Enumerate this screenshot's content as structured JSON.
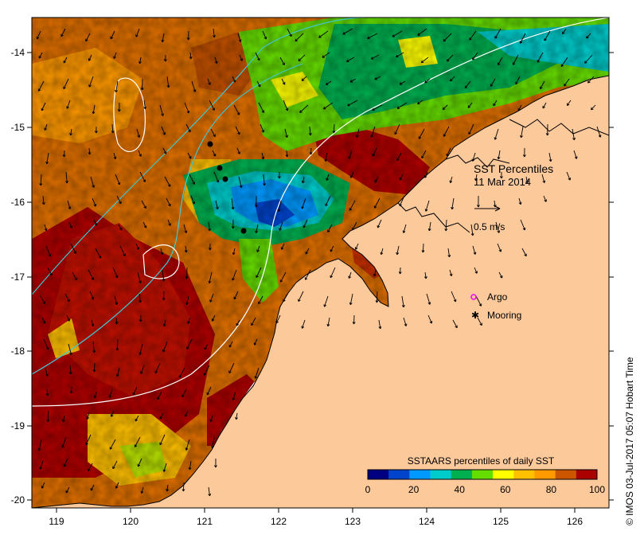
{
  "map": {
    "title": "SST Percentiles",
    "date": "11 Mar 2014",
    "x_ticks": [
      "119",
      "120",
      "121",
      "122",
      "123",
      "124",
      "125",
      "126"
    ],
    "y_ticks": [
      "-14",
      "-15",
      "-16",
      "-17",
      "-18",
      "-19",
      "-20"
    ],
    "vector_scale_label": "0.5 m/s",
    "legend": {
      "argo_label": "Argo",
      "mooring_label": "Mooring",
      "argo_color": "#ff00ff",
      "mooring_color": "#000000"
    },
    "colorbar": {
      "title": "SSTAARS percentiles of daily SST",
      "tick_labels": [
        "0",
        "20",
        "40",
        "60",
        "80",
        "100"
      ],
      "colors": [
        "#000080",
        "#0044cc",
        "#0099ff",
        "#00cccc",
        "#00b050",
        "#66dd00",
        "#ffff00",
        "#ffc000",
        "#ff9900",
        "#cc5500",
        "#aa0000"
      ]
    },
    "colors": {
      "land": "#fcc99b",
      "ocean_base": "#e07000",
      "warm_dark": "#b00000",
      "cool": "#0099ff",
      "cyan_contour": "#40c8d0",
      "white_contour": "#ffffff"
    },
    "credit": "© IMOS 03-Jul-2017 05:07 Hobart Time"
  }
}
